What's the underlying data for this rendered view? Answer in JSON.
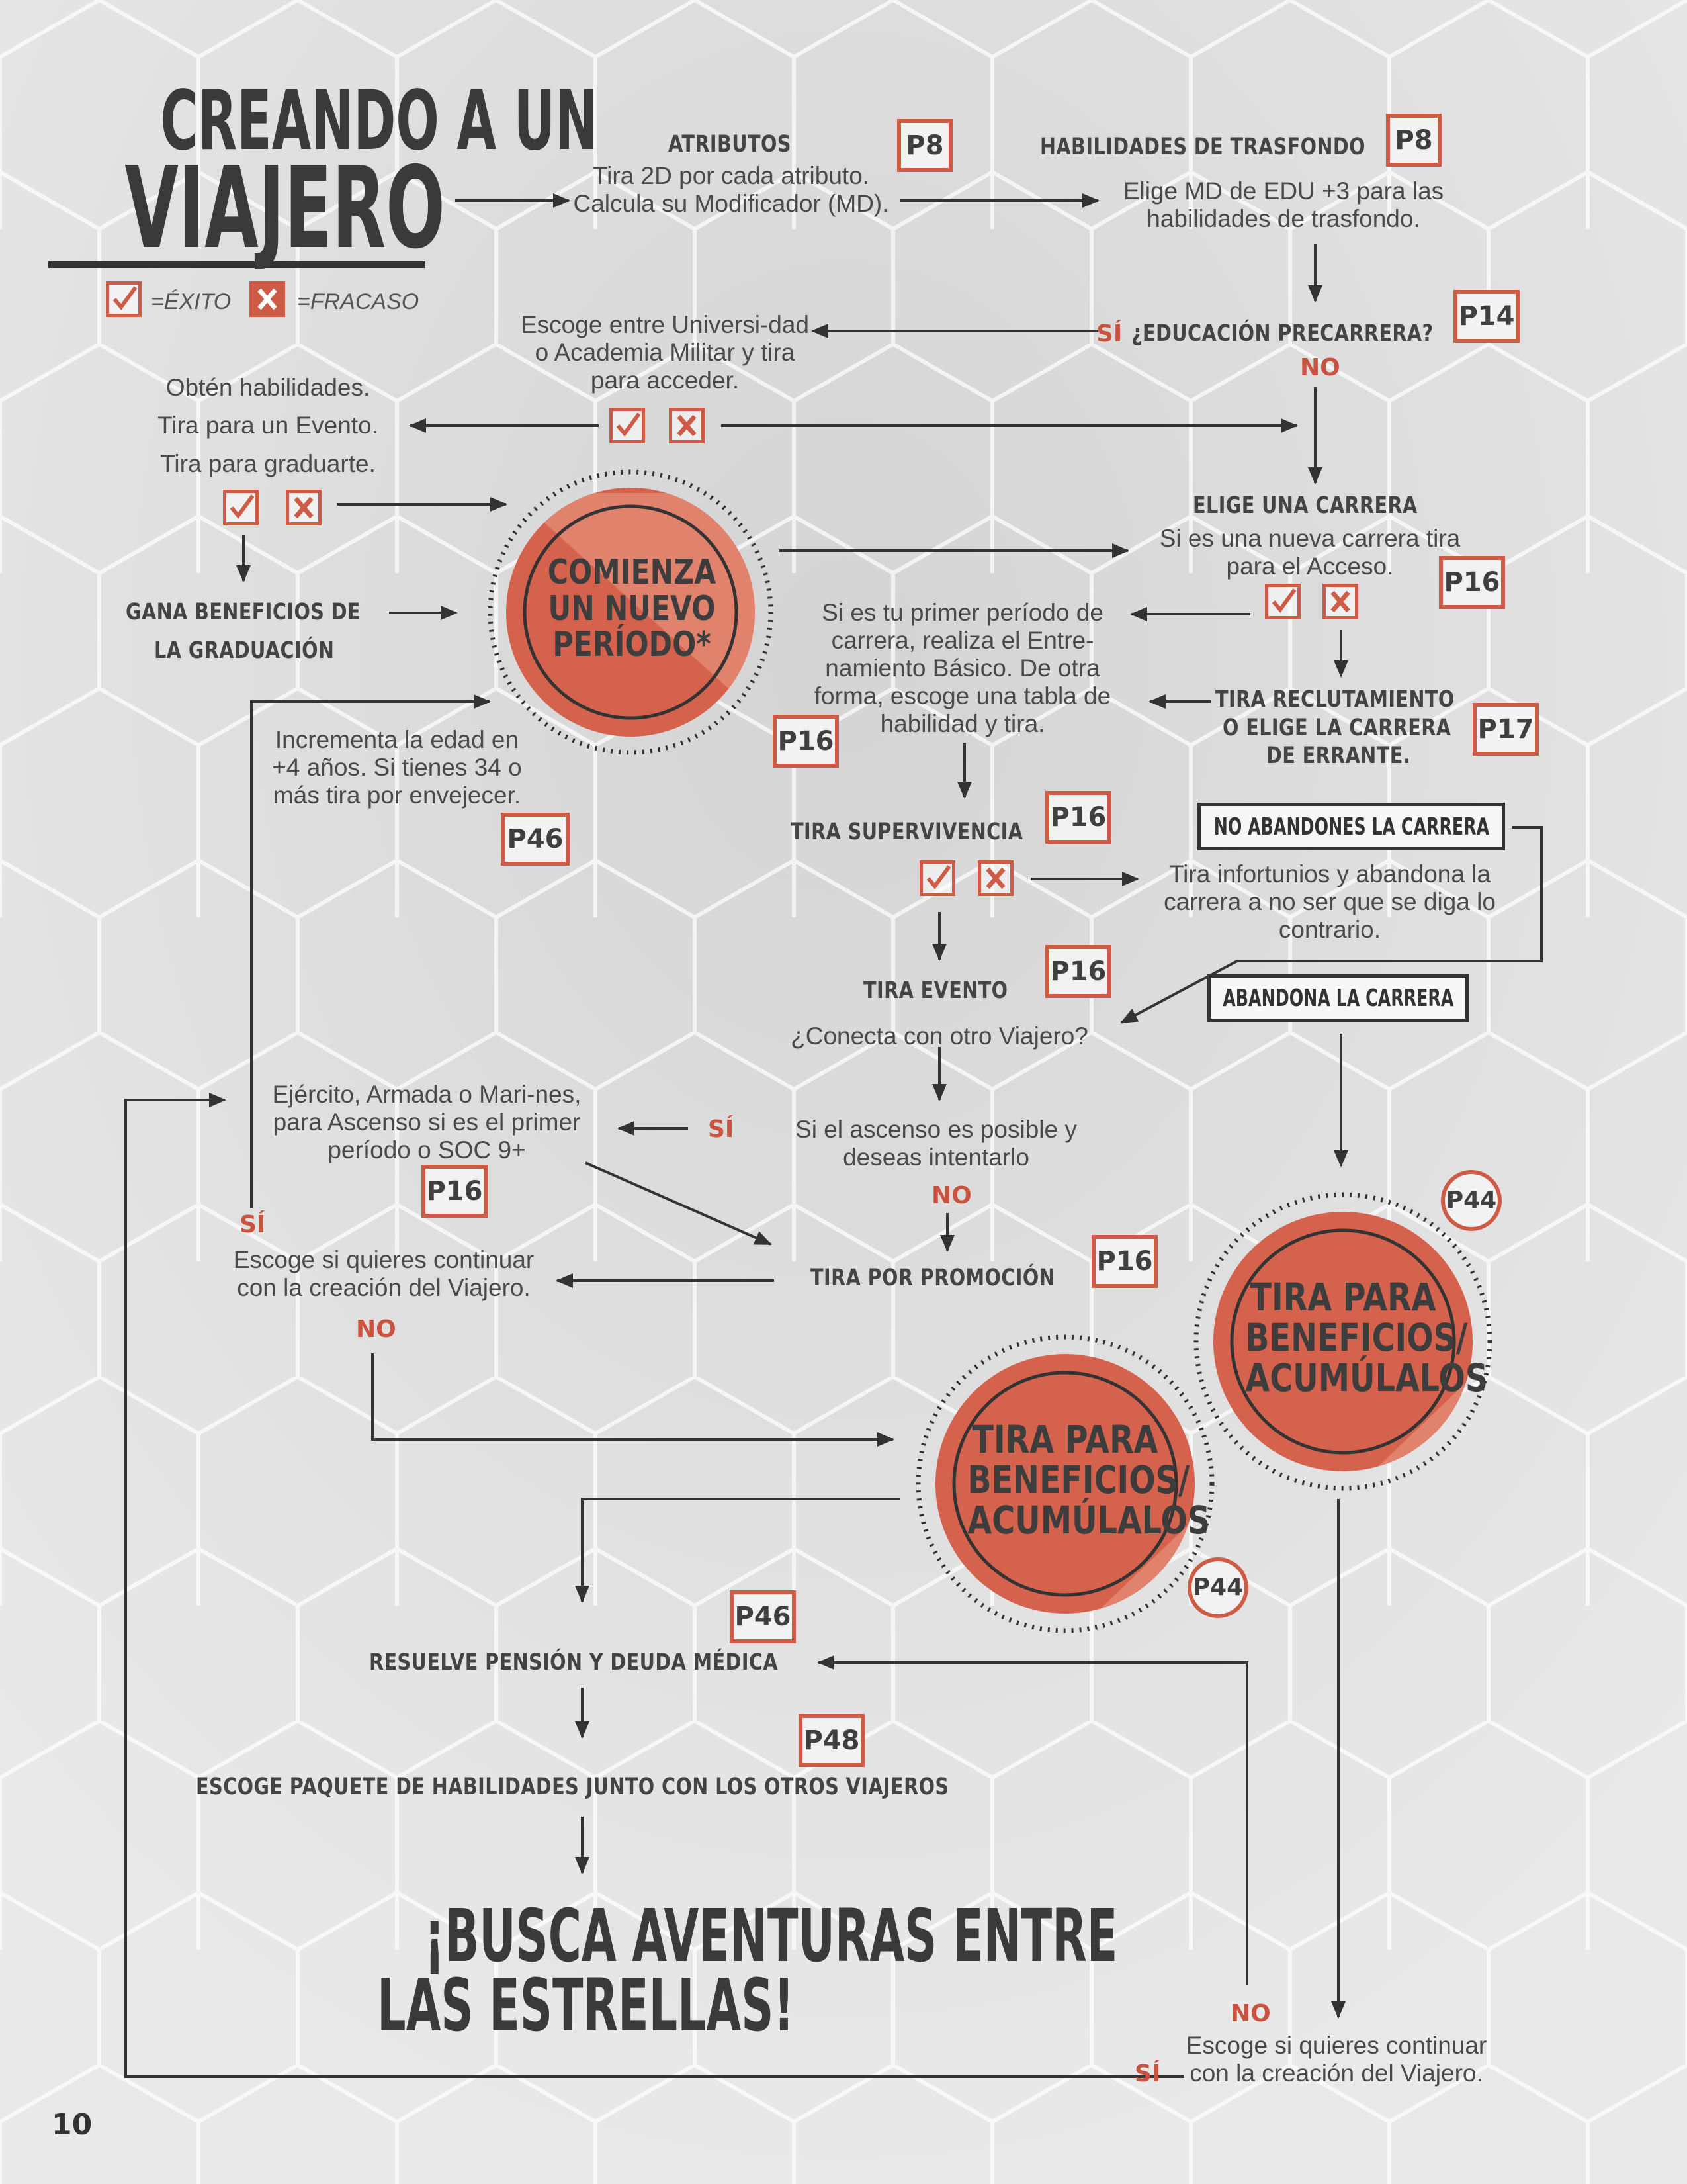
{
  "title": {
    "line1": "CREANDO A UN",
    "line2": "VIAJERO"
  },
  "legend": {
    "success": "=ÉXITO",
    "failure": "=FRACASO"
  },
  "page_number": "10",
  "nodes": {
    "atributos": {
      "title": "ATRIBUTOS",
      "body": "Tira 2D por cada atributo. Calcula su Modificador (MD).",
      "ref": "P8"
    },
    "habilidades": {
      "title": "HABILIDADES DE TRASFONDO",
      "body": "Elige MD de EDU +3 para las habilidades de trasfondo.",
      "ref": "P8"
    },
    "educacion": {
      "si": "SÍ",
      "title": "¿EDUCACIÓN PRECARRERA?",
      "no": "NO",
      "ref": "P14"
    },
    "universidad": {
      "body": "Escoge entre Universi-dad o Academia Militar y tira para acceder."
    },
    "obten": {
      "l1": "Obtén habilidades.",
      "l2": "Tira para un Evento.",
      "l3": "Tira para graduarte."
    },
    "gana": {
      "l1": "GANA BENEFICIOS DE",
      "l2": "LA GRADUACIÓN"
    },
    "comienza": {
      "l1": "COMIENZA",
      "l2": "UN NUEVO",
      "l3": "PERÍODO*"
    },
    "carrera": {
      "title": "ELIGE UNA CARRERA",
      "body": "Si es una nueva carrera tira para el Acceso.",
      "ref": "P16"
    },
    "primer": {
      "body": "Si es tu primer período de carrera, realiza el Entre-namiento Básico. De otra forma, escoge una tabla de habilidad y tira.",
      "ref": "P16"
    },
    "reclutamiento": {
      "l1": "TIRA RECLUTAMIENTO",
      "l2": "O ELIGE LA CARRERA",
      "l3": "DE ERRANTE.",
      "ref": "P17"
    },
    "edad": {
      "body": "Incrementa la edad en +4 años. Si tienes 34 o más tira por envejecer.",
      "ref": "P46"
    },
    "supervivencia": {
      "title": "TIRA SUPERVIVENCIA",
      "ref": "P16"
    },
    "no_abandones": "NO ABANDONES LA CARRERA",
    "infortunios": {
      "body": "Tira infortunios y abandona la carrera a no ser que se diga lo contrario."
    },
    "evento": {
      "title": "TIRA EVENTO",
      "body": "¿Conecta con otro Viajero?",
      "ref": "P16"
    },
    "abandona": "ABANDONA LA CARRERA",
    "ejercito": {
      "body": "Ejército, Armada o Mari-nes, para Ascenso si es el primer período o SOC 9+",
      "ref": "P16",
      "si": "SÍ"
    },
    "ascenso": {
      "body": "Si el ascenso es posible y deseas intentarlo",
      "no": "NO"
    },
    "promocion": {
      "title": "TIRA POR PROMOCIÓN",
      "ref": "P16"
    },
    "continuar1": {
      "si": "SÍ",
      "body": "Escoge si quieres continuar con la creación del Viajero.",
      "no": "NO"
    },
    "beneficios1": {
      "l1": "TIRA PARA",
      "l2": "BENEFICIOS/",
      "l3": "ACUMÚLALOS",
      "ref": "P44"
    },
    "beneficios2": {
      "l1": "TIRA PARA",
      "l2": "BENEFICIOS/",
      "l3": "ACUMÚLALOS",
      "ref": "P44"
    },
    "pension": {
      "title": "RESUELVE PENSIÓN Y DEUDA MÉDICA",
      "ref": "P46"
    },
    "paquete": {
      "title": "ESCOGE PAQUETE DE HABILIDADES JUNTO CON LOS OTROS VIAJEROS",
      "ref": "P48"
    },
    "aventuras": {
      "l1": "¡BUSCA AVENTURAS ENTRE",
      "l2": "LAS ESTRELLAS!"
    },
    "continuar2": {
      "no": "NO",
      "si": "SÍ",
      "body": "Escoge si quieres continuar con la creación del Viajero."
    }
  },
  "colors": {
    "accent": "#cd5b46",
    "circle_fill": "#d5624c",
    "text": "#4a4a4a",
    "arrow": "#333333"
  }
}
